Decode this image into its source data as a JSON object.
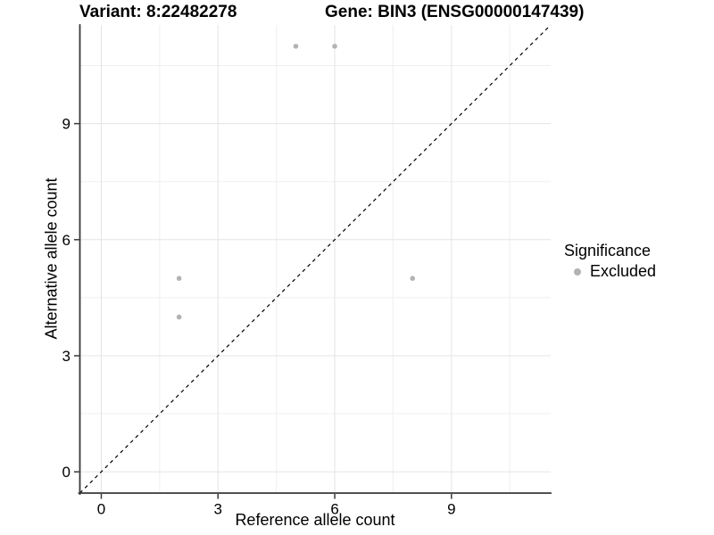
{
  "chart_data": {
    "type": "scatter",
    "title_left": "Variant: 8:22482278",
    "title_right": "Gene: BIN3 (ENSG00000147439)",
    "xlabel": "Reference allele count",
    "ylabel": "Alternative allele count",
    "xlim": [
      -0.55,
      11.55
    ],
    "ylim": [
      -0.55,
      11.55
    ],
    "x_ticks": [
      0,
      3,
      6,
      9
    ],
    "y_ticks": [
      0,
      3,
      6,
      9
    ],
    "x_minor": [
      1.5,
      4.5,
      7.5,
      10.5
    ],
    "y_minor": [
      1.5,
      4.5,
      7.5,
      10.5
    ],
    "grid": true,
    "reference_line": {
      "kind": "identity y=x",
      "style": "dashed",
      "color": "#000000"
    },
    "series": [
      {
        "name": "Excluded",
        "color": "#b3b3b3",
        "points": [
          [
            2,
            4
          ],
          [
            2,
            5
          ],
          [
            5,
            11
          ],
          [
            6,
            11
          ],
          [
            8,
            5
          ]
        ]
      }
    ],
    "legend": {
      "title": "Significance",
      "position": "right",
      "entries": [
        {
          "label": "Excluded",
          "color": "#b3b3b3"
        }
      ]
    },
    "style_colors": {
      "grid_major": "#e4e4e4",
      "grid_minor": "#efefef",
      "axis_line": "#383838",
      "tick_label": "#000000",
      "background": "#ffffff"
    }
  }
}
